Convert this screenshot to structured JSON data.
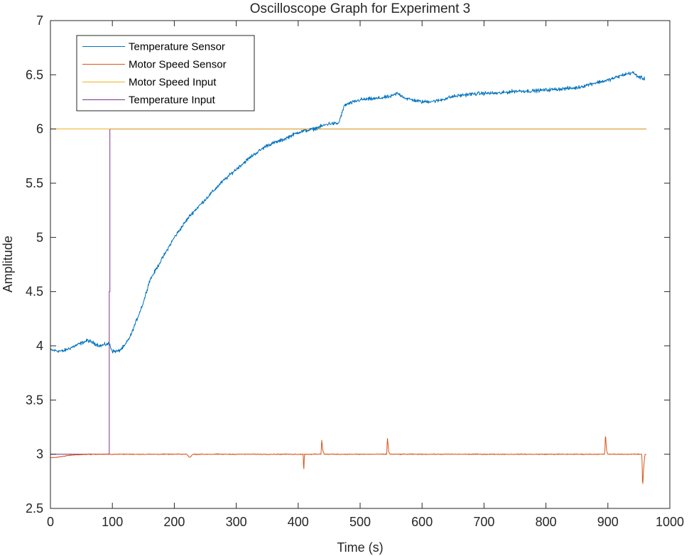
{
  "chart_data": {
    "type": "line",
    "title": "Oscilloscope Graph for Experiment 3",
    "xlabel": "Time (s)",
    "ylabel": "Amplitude",
    "xlim": [
      0,
      1000
    ],
    "ylim": [
      2.5,
      7
    ],
    "xticks": [
      0,
      100,
      200,
      300,
      400,
      500,
      600,
      700,
      800,
      900,
      1000
    ],
    "yticks": [
      2.5,
      3,
      3.5,
      4,
      4.5,
      5,
      5.5,
      6,
      6.5,
      7
    ],
    "grid": false,
    "legend_position": "top-left",
    "series": [
      {
        "name": "Temperature Sensor",
        "color": "#0072BD",
        "noise": 0.025,
        "x": [
          0,
          20,
          40,
          60,
          80,
          95,
          100,
          110,
          120,
          130,
          140,
          150,
          160,
          180,
          200,
          225,
          250,
          275,
          300,
          325,
          350,
          375,
          400,
          425,
          450,
          465,
          475,
          500,
          525,
          550,
          560,
          575,
          600,
          625,
          650,
          675,
          700,
          725,
          750,
          775,
          800,
          825,
          850,
          875,
          900,
          925,
          940,
          950,
          960
        ],
        "y": [
          3.96,
          3.95,
          4.0,
          4.05,
          4.0,
          4.02,
          3.95,
          3.95,
          4.0,
          4.1,
          4.25,
          4.4,
          4.6,
          4.8,
          5.0,
          5.2,
          5.35,
          5.5,
          5.63,
          5.75,
          5.85,
          5.9,
          5.97,
          6.0,
          6.05,
          6.05,
          6.22,
          6.27,
          6.28,
          6.3,
          6.33,
          6.28,
          6.25,
          6.26,
          6.3,
          6.32,
          6.33,
          6.33,
          6.35,
          6.35,
          6.36,
          6.37,
          6.38,
          6.42,
          6.45,
          6.5,
          6.52,
          6.48,
          6.46
        ]
      },
      {
        "name": "Motor Speed Sensor",
        "color": "#D95319",
        "noise": 0.006,
        "x": [
          0,
          10,
          30,
          60,
          90,
          100,
          200,
          220,
          225,
          230,
          300,
          408,
          409,
          410,
          411,
          437,
          438,
          440,
          442,
          543,
          544,
          546,
          548,
          700,
          895,
          896,
          898,
          900,
          955,
          956,
          958,
          960,
          962
        ],
        "y": [
          2.97,
          2.97,
          2.99,
          3.0,
          3.0,
          3.0,
          3.0,
          3.0,
          2.97,
          3.0,
          3.0,
          3.0,
          2.83,
          3.0,
          3.0,
          3.0,
          3.13,
          3.03,
          3.0,
          3.0,
          3.16,
          3.03,
          3.0,
          3.0,
          3.0,
          3.19,
          3.03,
          3.0,
          3.0,
          2.69,
          2.9,
          3.0,
          3.0
        ]
      },
      {
        "name": "Motor Speed Input",
        "color": "#EDB120",
        "noise": 0,
        "x": [
          0,
          95,
          95,
          962
        ],
        "y": [
          6.0,
          6.0,
          6.0,
          6.0
        ]
      },
      {
        "name": "Temperature Input",
        "color": "#7E2F8E",
        "noise": 0,
        "x": [
          0,
          95,
          95,
          96,
          96,
          962
        ],
        "y": [
          3.0,
          3.0,
          4.5,
          4.5,
          6.0,
          6.0
        ]
      }
    ]
  }
}
